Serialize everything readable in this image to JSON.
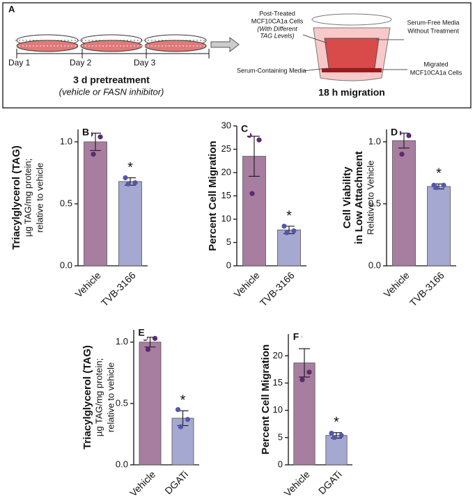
{
  "schematic": {
    "panel": "A",
    "day1": "Day 1",
    "day2": "Day 2",
    "day3": "Day 3",
    "pretreatment": "3 d pretreatment",
    "pretreatment_note": "(vehicle or FASN inhibitor)",
    "post_treated": [
      "Post-Treated",
      "MCF10CA1a Cells",
      "(With Different",
      "TAG Levels)"
    ],
    "serum_containing": "Serum-Containing Media",
    "serum_free": [
      "Serum-Free Media",
      "Without Treatment"
    ],
    "migrated": [
      "Migrated",
      "MCF10CA1a Cells"
    ],
    "migration": "18 h migration"
  },
  "chart_data": [
    {
      "type": "bar",
      "panel": "B",
      "ylabel": [
        "Triacylglycerol (TAG)"
      ],
      "ylabel_sub": [
        "µg TAG/mg protein;",
        "relative to vehicle"
      ],
      "categories": [
        "Vehicle",
        "TVB-3166"
      ],
      "values": [
        1.0,
        0.68
      ],
      "errors": [
        0.07,
        0.03
      ],
      "points": [
        [
          1.06,
          1.04,
          0.9
        ],
        [
          0.71,
          0.67,
          0.66
        ]
      ],
      "annotation": "*",
      "colors": [
        "#a77ea0",
        "#a5a8d0"
      ],
      "point_colors": [
        "#5e2a6e",
        "#5558a8"
      ],
      "ylim": [
        0,
        1.1
      ],
      "yticks": [
        {
          "value": 0,
          "label": "0.0"
        },
        {
          "value": 0.5,
          "label": "0.5"
        },
        {
          "value": 1,
          "label": "1.0"
        }
      ]
    },
    {
      "type": "bar",
      "panel": "C",
      "ylabel": [
        "Percent Cell Migration"
      ],
      "ylabel_sub": [],
      "categories": [
        "Vehicle",
        "TVB-3166"
      ],
      "values": [
        23.5,
        7.7
      ],
      "errors": [
        4.3,
        0.8
      ],
      "points": [
        [
          28,
          27,
          15.5
        ],
        [
          8.5,
          7.5,
          7.1
        ]
      ],
      "annotation": "*",
      "colors": [
        "#a77ea0",
        "#a5a8d0"
      ],
      "point_colors": [
        "#5e2a6e",
        "#5558a8"
      ],
      "ylim": [
        0,
        30
      ],
      "yticks": [
        0,
        5,
        10,
        15,
        20,
        25,
        30
      ]
    },
    {
      "type": "bar",
      "panel": "D",
      "ylabel": [
        "Cell Viability",
        "in Low Attachment"
      ],
      "ylabel_sub": [
        "Relative to Vehicle"
      ],
      "categories": [
        "Vehicle",
        "TVB-3166"
      ],
      "values": [
        1.01,
        0.64
      ],
      "errors": [
        0.06,
        0.02
      ],
      "points": [
        [
          1.07,
          1.05,
          0.9
        ],
        [
          0.65,
          0.65,
          0.63
        ]
      ],
      "annotation": "*",
      "colors": [
        "#a77ea0",
        "#a5a8d0"
      ],
      "point_colors": [
        "#5e2a6e",
        "#5558a8"
      ],
      "ylim": [
        0,
        1.1
      ],
      "yticks": [
        {
          "value": 0,
          "label": "0.0"
        },
        {
          "value": 0.5,
          "label": "0.5"
        },
        {
          "value": 1,
          "label": "1.0"
        }
      ]
    },
    {
      "type": "bar",
      "panel": "E",
      "ylabel": [
        "Triacylglycerol (TAG)"
      ],
      "ylabel_sub": [
        "µg TAG/mg protein;",
        "relative to vehicle"
      ],
      "categories": [
        "Vehicle",
        "DGATi"
      ],
      "values": [
        1.0,
        0.38
      ],
      "errors": [
        0.04,
        0.06
      ],
      "points": [
        [
          1.03,
          1.03,
          0.94
        ],
        [
          0.45,
          0.37,
          0.31
        ]
      ],
      "annotation": "*",
      "colors": [
        "#a77ea0",
        "#a5a8d0"
      ],
      "point_colors": [
        "#5e2a6e",
        "#5558a8"
      ],
      "ylim": [
        0,
        1.1
      ],
      "yticks": [
        {
          "value": 0,
          "label": "0.0"
        },
        {
          "value": 0.5,
          "label": "0.5"
        },
        {
          "value": 1,
          "label": "1.0"
        }
      ]
    },
    {
      "type": "bar",
      "panel": "F",
      "ylabel": [
        "Percent Cell Migration"
      ],
      "ylabel_sub": [],
      "categories": [
        "Vehicle",
        "DGATi"
      ],
      "values": [
        18.7,
        5.4
      ],
      "errors": [
        2.6,
        0.5
      ],
      "points": [
        [
          23.5,
          17,
          15.6
        ],
        [
          5.8,
          5.4,
          5.0
        ]
      ],
      "annotation": "*",
      "colors": [
        "#a77ea0",
        "#a5a8d0"
      ],
      "point_colors": [
        "#5e2a6e",
        "#5558a8"
      ],
      "ylim": [
        0,
        24
      ],
      "yticks": [
        0,
        5,
        10,
        15,
        20
      ]
    }
  ]
}
